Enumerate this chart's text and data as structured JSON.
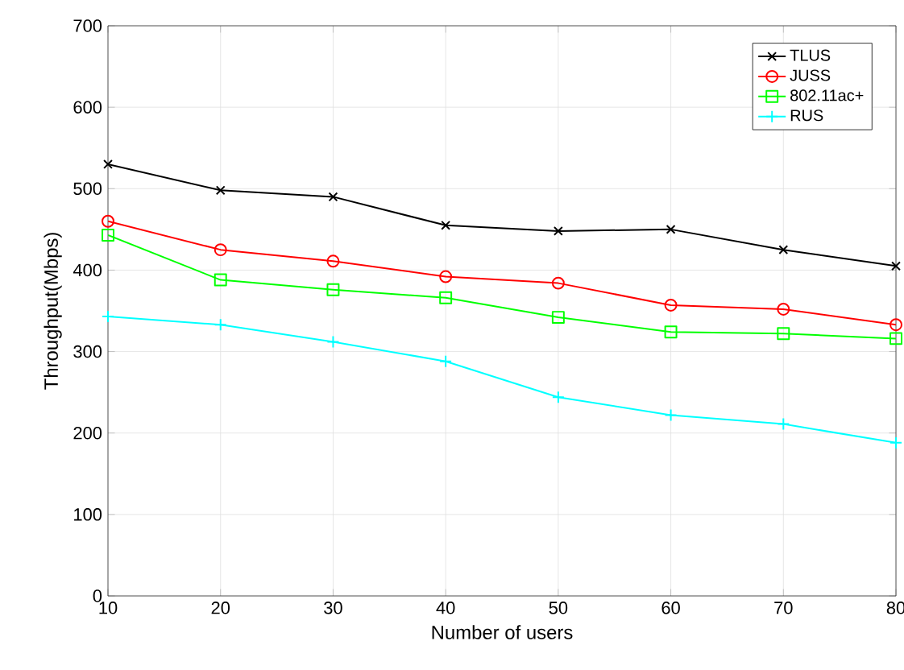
{
  "chart_data": {
    "type": "line",
    "xlabel": "Number of users",
    "ylabel": "Throughput(Mbps)",
    "x": [
      10,
      20,
      30,
      40,
      50,
      60,
      70,
      80
    ],
    "series": [
      {
        "name": "TLUS",
        "color": "#000000",
        "marker": "cross",
        "values": [
          530,
          498,
          490,
          455,
          448,
          450,
          425,
          405
        ]
      },
      {
        "name": "JUSS",
        "color": "#ff0000",
        "marker": "circle",
        "values": [
          460,
          425,
          411,
          392,
          384,
          357,
          352,
          333
        ]
      },
      {
        "name": "802.11ac+",
        "color": "#00ff00",
        "marker": "square",
        "values": [
          443,
          388,
          376,
          366,
          342,
          324,
          322,
          316
        ]
      },
      {
        "name": "RUS",
        "color": "#00ffff",
        "marker": "plus",
        "values": [
          343,
          333,
          312,
          288,
          244,
          222,
          211,
          188
        ]
      }
    ],
    "xlim": [
      10,
      80
    ],
    "xticks": [
      10,
      20,
      30,
      40,
      50,
      60,
      70,
      80
    ],
    "ylim": [
      0,
      700
    ],
    "yticks": [
      0,
      100,
      200,
      300,
      400,
      500,
      600,
      700
    ],
    "grid": true,
    "legend": "top right"
  }
}
